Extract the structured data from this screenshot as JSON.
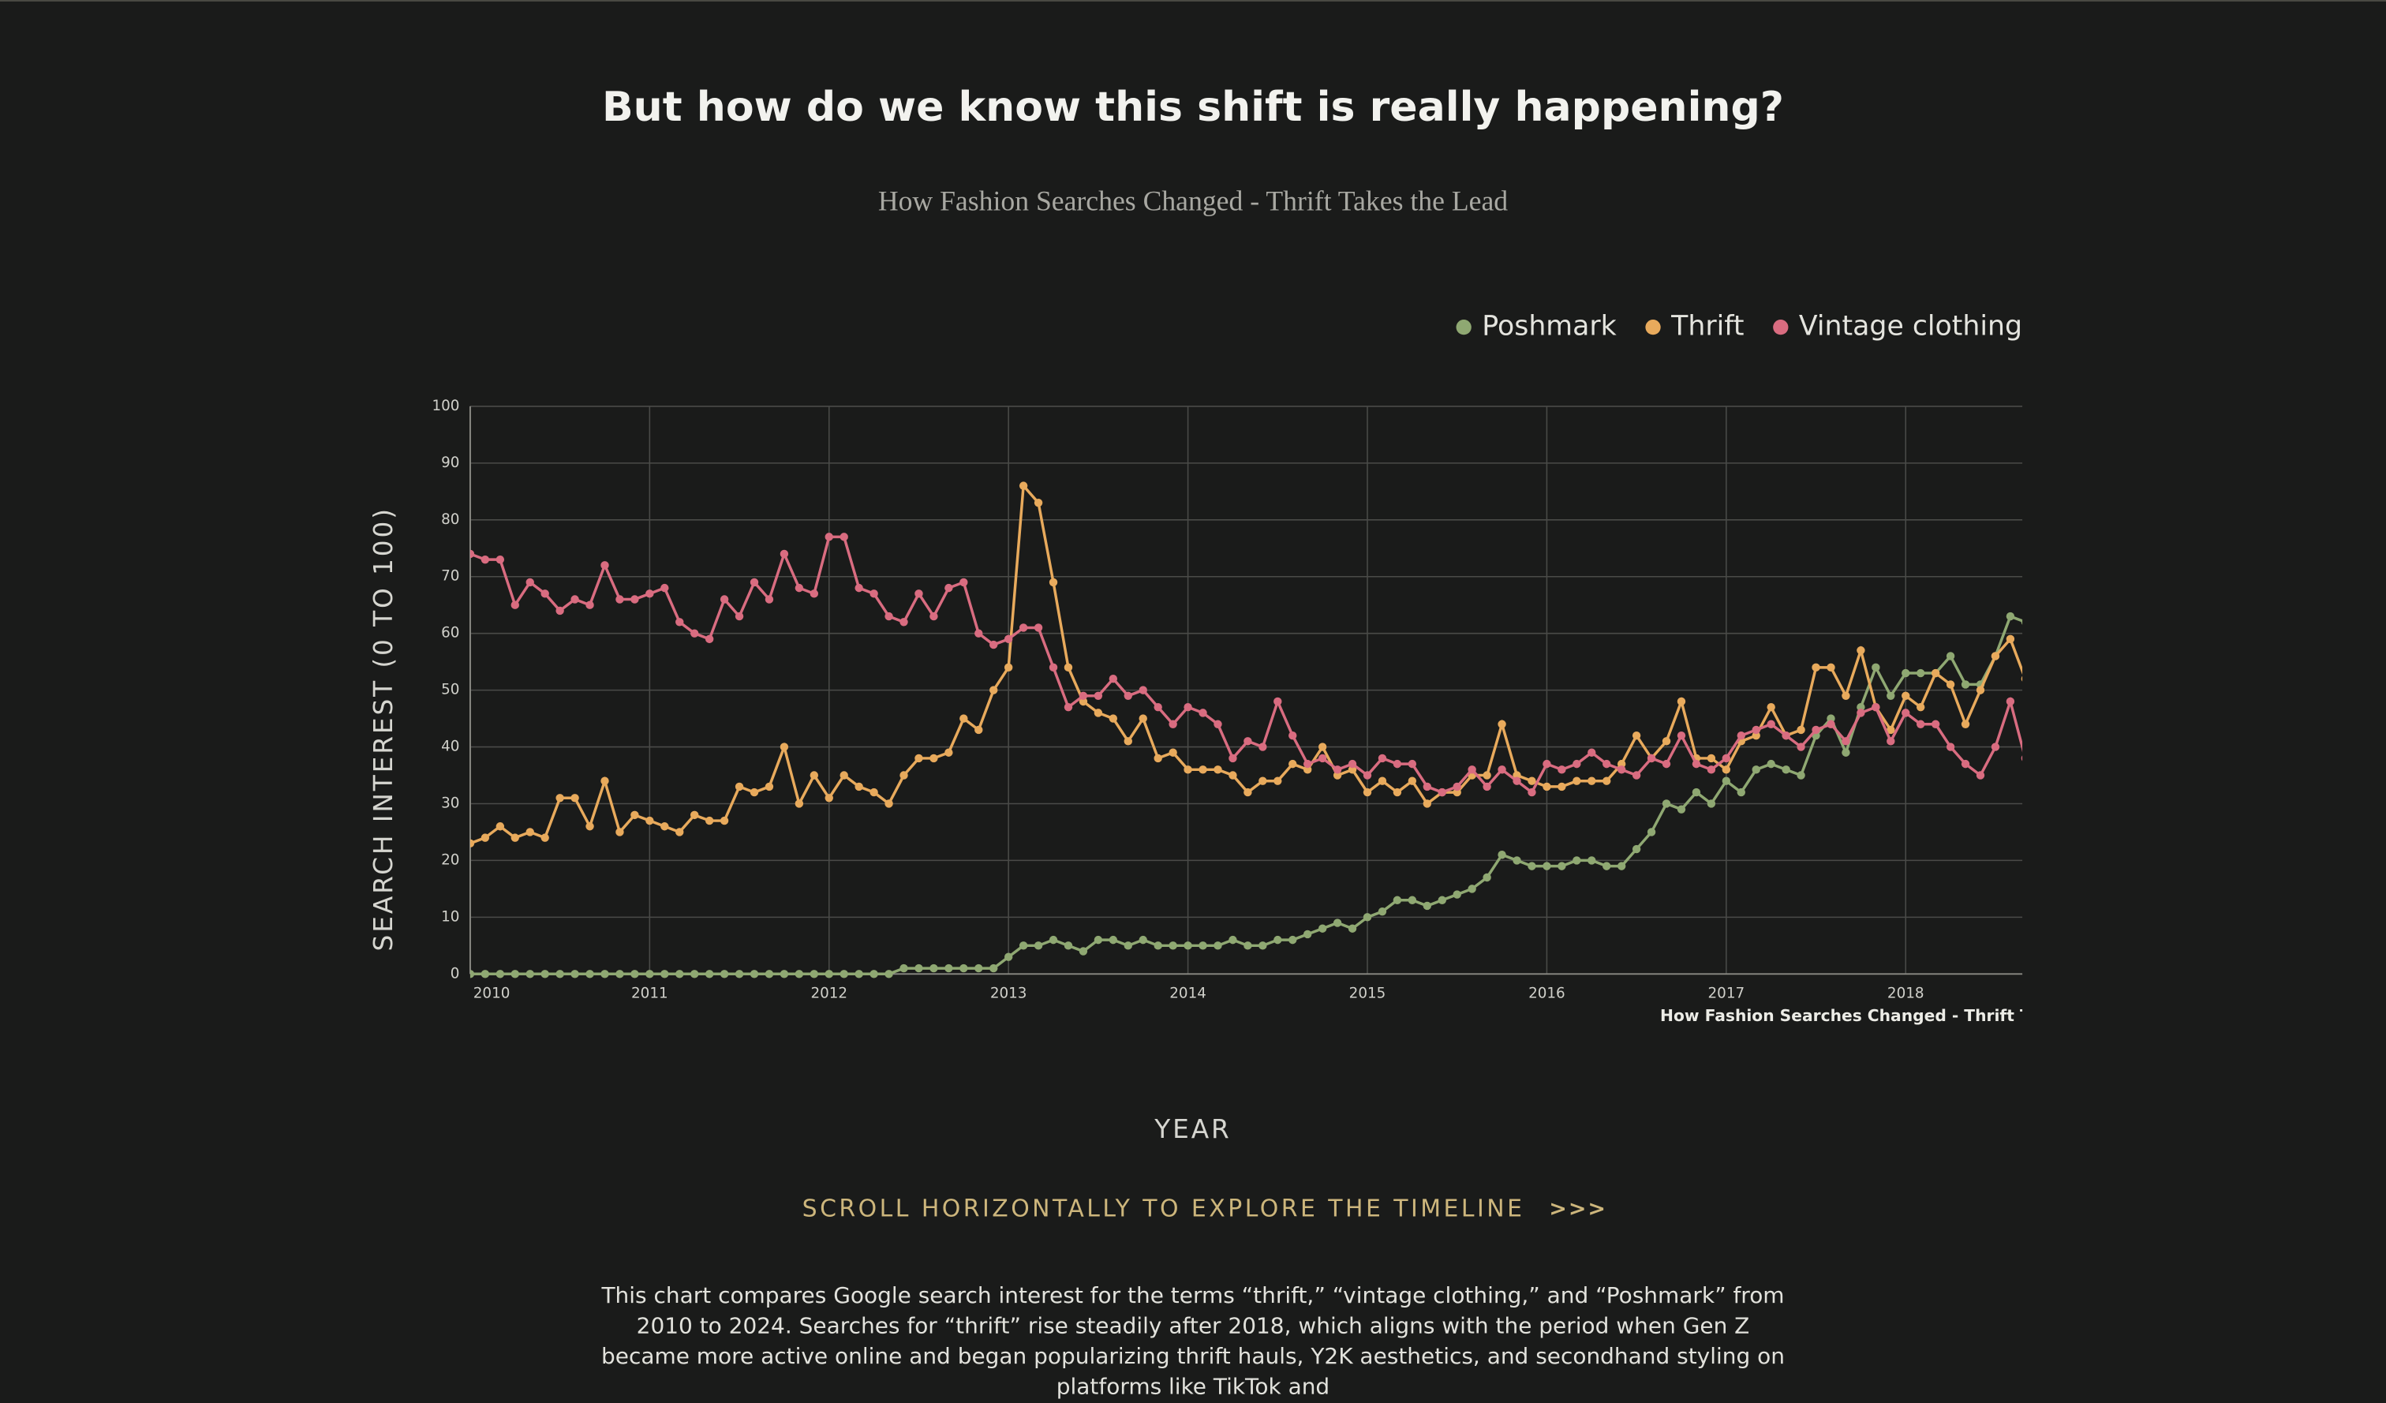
{
  "page": {
    "heading": "But how do we know this shift is really happening?",
    "scroll_hint": "SCROLL HORIZONTALLY TO EXPLORE THE TIMELINE",
    "scroll_arrows": ">>>",
    "description": "This chart compares Google search interest for the terms “thrift,” “vintage clothing,” and “Poshmark” from 2010 to 2024. Searches for “thrift” rise steadily after 2018, which aligns with the period when Gen Z became more active online and began popularizing thrift hauls, Y2K aesthetics, and secondhand styling on platforms like TikTok and"
  },
  "chart_data": {
    "type": "line",
    "title": "How Fashion Searches Changed - Thrift Takes the Lead",
    "xlabel": "YEAR",
    "ylabel": "SEARCH INTEREST (0 TO 100)",
    "xlim": [
      2010,
      2018.65
    ],
    "xticks": [
      2010,
      2011,
      2012,
      2013,
      2014,
      2015,
      2016,
      2017,
      2018
    ],
    "ylim": [
      0,
      100
    ],
    "yticks": [
      0,
      10,
      20,
      30,
      40,
      50,
      60,
      70,
      80,
      90,
      100
    ],
    "grid": true,
    "legend": "top-right",
    "series": [
      {
        "name": "Poshmark",
        "color": "#8fa872",
        "values": [
          0,
          0,
          0,
          0,
          0,
          0,
          0,
          0,
          0,
          0,
          0,
          0,
          0,
          0,
          0,
          0,
          0,
          0,
          0,
          0,
          0,
          0,
          0,
          0,
          0,
          0,
          0,
          0,
          0,
          1,
          1,
          1,
          1,
          1,
          1,
          1,
          3,
          5,
          5,
          6,
          5,
          4,
          6,
          6,
          5,
          6,
          5,
          5,
          5,
          5,
          5,
          6,
          5,
          5,
          6,
          6,
          7,
          8,
          9,
          8,
          10,
          11,
          13,
          13,
          12,
          13,
          14,
          15,
          17,
          21,
          20,
          19,
          19,
          19,
          20,
          20,
          19,
          19,
          22,
          25,
          30,
          29,
          32,
          30,
          34,
          32,
          36,
          37,
          36,
          35,
          42,
          45,
          39,
          47,
          54,
          49,
          53,
          53,
          53,
          56,
          51,
          51,
          56,
          63,
          62
        ]
      },
      {
        "name": "Thrift",
        "color": "#e8aa5c",
        "values": [
          23,
          24,
          26,
          24,
          25,
          24,
          31,
          31,
          26,
          34,
          25,
          28,
          27,
          26,
          25,
          28,
          27,
          27,
          33,
          32,
          33,
          40,
          30,
          35,
          31,
          35,
          33,
          32,
          30,
          35,
          38,
          38,
          39,
          45,
          43,
          50,
          54,
          86,
          83,
          69,
          54,
          48,
          46,
          45,
          41,
          45,
          38,
          39,
          36,
          36,
          36,
          35,
          32,
          34,
          34,
          37,
          36,
          40,
          35,
          36,
          32,
          34,
          32,
          34,
          30,
          32,
          32,
          35,
          35,
          44,
          35,
          34,
          33,
          33,
          34,
          34,
          34,
          37,
          42,
          38,
          41,
          48,
          38,
          38,
          36,
          41,
          42,
          47,
          42,
          43,
          54,
          54,
          49,
          57,
          47,
          43,
          49,
          47,
          53,
          51,
          44,
          50,
          56,
          59,
          52
        ]
      },
      {
        "name": "Vintage clothing",
        "color": "#d96c80",
        "values": [
          74,
          73,
          73,
          65,
          69,
          67,
          64,
          66,
          65,
          72,
          66,
          66,
          67,
          68,
          62,
          60,
          59,
          66,
          63,
          69,
          66,
          74,
          68,
          67,
          77,
          77,
          68,
          67,
          63,
          62,
          67,
          63,
          68,
          69,
          60,
          58,
          59,
          61,
          61,
          54,
          47,
          49,
          49,
          52,
          49,
          50,
          47,
          44,
          47,
          46,
          44,
          38,
          41,
          40,
          48,
          42,
          37,
          38,
          36,
          37,
          35,
          38,
          37,
          37,
          33,
          32,
          33,
          36,
          33,
          36,
          34,
          32,
          37,
          36,
          37,
          39,
          37,
          36,
          35,
          38,
          37,
          42,
          37,
          36,
          38,
          42,
          43,
          44,
          42,
          40,
          43,
          44,
          41,
          46,
          47,
          41,
          46,
          44,
          44,
          40,
          37,
          35,
          40,
          48,
          38
        ]
      }
    ]
  }
}
